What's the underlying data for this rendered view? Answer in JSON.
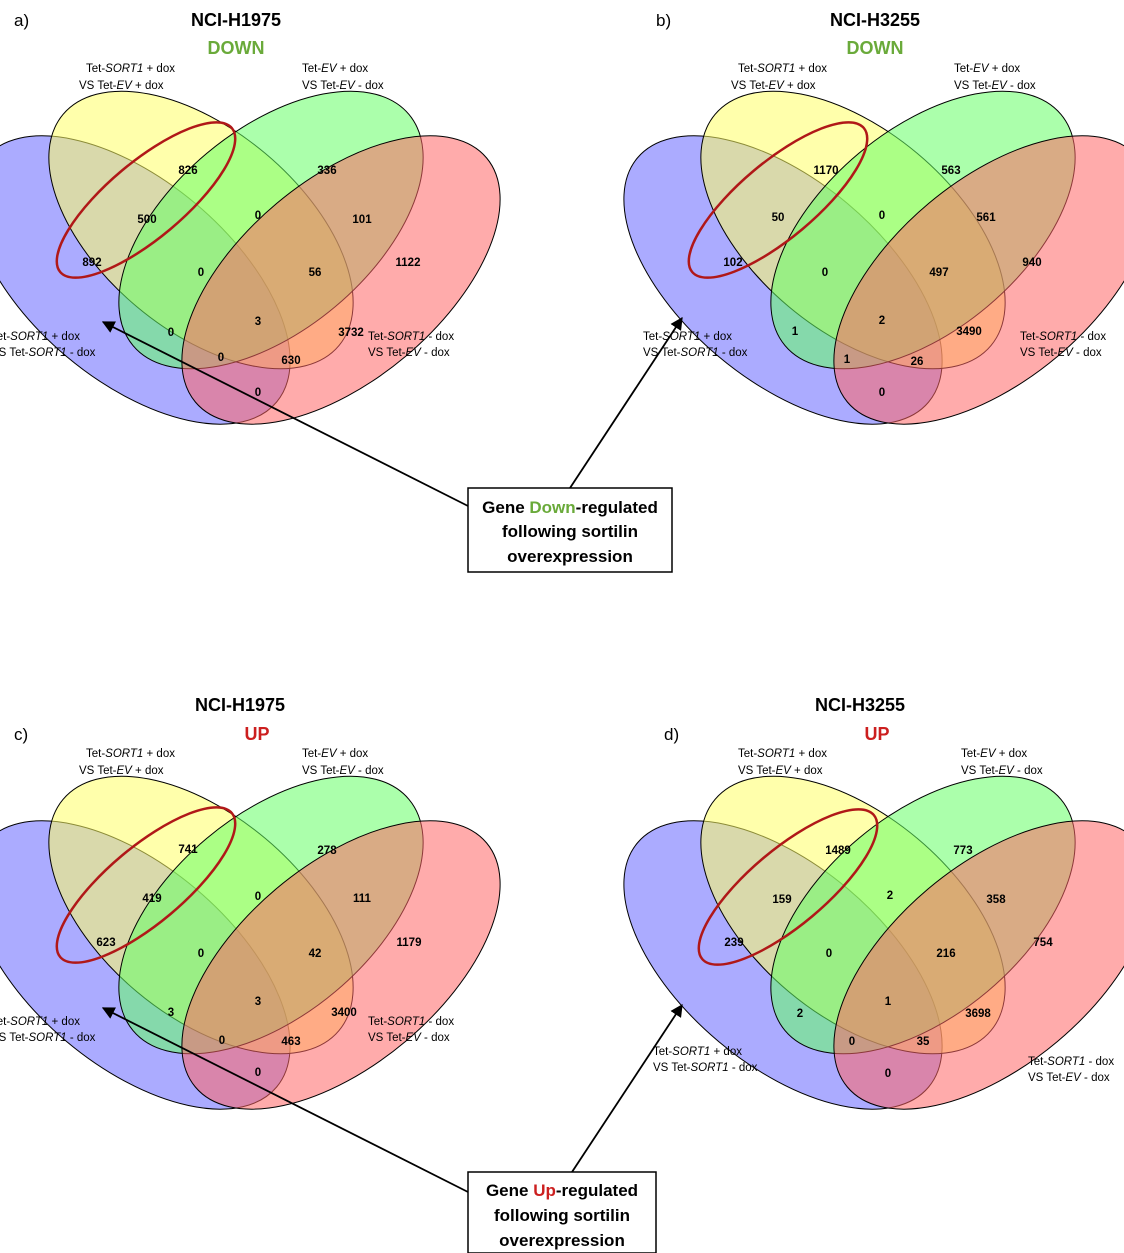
{
  "colors": {
    "down": "#6aaa3a",
    "up": "#cc1f1f",
    "circle": "#b01818",
    "ellipse_a": "#6666ff",
    "ellipse_b": "#ffff66",
    "ellipse_c": "#66ff66",
    "ellipse_d": "#ff6666"
  },
  "set_labels": {
    "a_line1_pre": "Tet-",
    "a_line1_it": "SORT1",
    "a_line1_post": " + dox",
    "a_line2_pre": "VS Tet-",
    "a_line2_it": "SORT1",
    "a_line2_post": " - dox",
    "b_line1_pre": "Tet-",
    "b_line1_it": "SORT1",
    "b_line1_post": " + dox",
    "b_line2_pre": "VS Tet-",
    "b_line2_it": "EV",
    "b_line2_post": " + dox",
    "c_line1_pre": "Tet-",
    "c_line1_it": "EV",
    "c_line1_post": " + dox",
    "c_line2_pre": "VS Tet-",
    "c_line2_it": "EV",
    "c_line2_post": " - dox",
    "d_line1_pre": "Tet-",
    "d_line1_it": "SORT1",
    "d_line1_post": " - dox",
    "d_line2_pre": "VS Tet-",
    "d_line2_it": "EV",
    "d_line2_post": " - dox"
  },
  "panels": [
    {
      "letter": "a)",
      "cell_line": "NCI-H1975",
      "direction": "DOWN",
      "direction_color": "#6aaa3a",
      "counts": {
        "A": "892",
        "B": "826",
        "C": "336",
        "D": "1122",
        "AB": "500",
        "BC": "0",
        "CD": "101",
        "AC": "0",
        "BD": "3732",
        "AD": "0",
        "ABC": "0",
        "BCD": "56",
        "ABD": "630",
        "ACD": "0",
        "ABCD": "3"
      }
    },
    {
      "letter": "b)",
      "cell_line": "NCI-H3255",
      "direction": "DOWN",
      "direction_color": "#6aaa3a",
      "counts": {
        "A": "102",
        "B": "1170",
        "C": "563",
        "D": "940",
        "AB": "50",
        "BC": "0",
        "CD": "561",
        "AC": "1",
        "BD": "3490",
        "AD": "0",
        "ABC": "0",
        "BCD": "497",
        "ABD": "26",
        "ACD": "1",
        "ABCD": "2"
      }
    },
    {
      "letter": "c)",
      "cell_line": "NCI-H1975",
      "direction": "UP",
      "direction_color": "#cc1f1f",
      "counts": {
        "A": "623",
        "B": "741",
        "C": "278",
        "D": "1179",
        "AB": "419",
        "BC": "0",
        "CD": "111",
        "AC": "3",
        "BD": "3400",
        "AD": "0",
        "ABC": "0",
        "BCD": "42",
        "ABD": "463",
        "ACD": "0",
        "ABCD": "3"
      }
    },
    {
      "letter": "d)",
      "cell_line": "NCI-H3255",
      "direction": "UP",
      "direction_color": "#cc1f1f",
      "counts": {
        "A": "239",
        "B": "1489",
        "C": "773",
        "D": "754",
        "AB": "159",
        "BC": "2",
        "CD": "358",
        "AC": "2",
        "BD": "3698",
        "AD": "0",
        "ABC": "0",
        "BCD": "216",
        "ABD": "35",
        "ACD": "0",
        "ABCD": "1"
      }
    }
  ],
  "notes": {
    "down": {
      "line1_pre": "Gene ",
      "line1_word": "Down",
      "line1_post": "-regulated",
      "line2": "following sortilin",
      "line3": "overexpression"
    },
    "up": {
      "line1_pre": "Gene ",
      "line1_word": "Up",
      "line1_post": "-regulated",
      "line2": "following sortilin",
      "line3": "overexpression"
    }
  }
}
